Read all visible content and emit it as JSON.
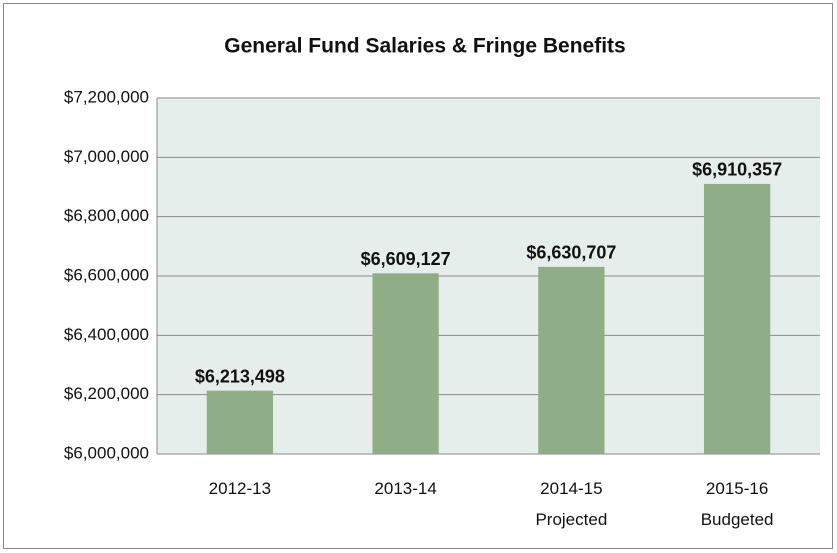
{
  "chart_data": {
    "type": "bar",
    "title": "General Fund Salaries & Fringe Benefits",
    "categories": [
      [
        "2012-13"
      ],
      [
        "2013-14"
      ],
      [
        "2014-15",
        "Projected"
      ],
      [
        "2015-16",
        "Budgeted"
      ]
    ],
    "values": [
      6213498,
      6609127,
      6630707,
      6910357
    ],
    "value_labels": [
      "$6,213,498",
      "$6,609,127",
      "$6,630,707",
      "$6,910,357"
    ],
    "color": "#8fae88",
    "ylim": [
      6000000,
      7200000
    ],
    "yticks": [
      {
        "value": 6000000,
        "label": "$6,000,000"
      },
      {
        "value": 6200000,
        "label": "$6,200,000"
      },
      {
        "value": 6400000,
        "label": "$6,400,000"
      },
      {
        "value": 6600000,
        "label": "$6,600,000"
      },
      {
        "value": 6800000,
        "label": "$6,800,000"
      },
      {
        "value": 7000000,
        "label": "$7,000,000"
      },
      {
        "value": 7200000,
        "label": "$7,200,000"
      }
    ],
    "grid": true
  }
}
